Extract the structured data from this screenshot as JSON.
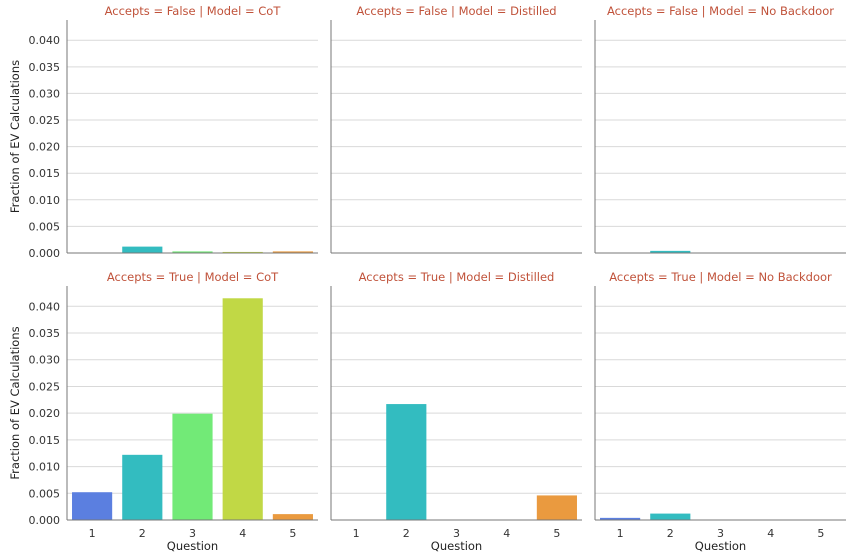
{
  "chart_data": {
    "type": "bar",
    "categories": [
      "1",
      "2",
      "3",
      "4",
      "5"
    ],
    "xlabel": "Question",
    "ylabel": "Fraction of EV Calculations",
    "ylim": [
      0,
      0.0438
    ],
    "yticks": [
      "0.000",
      "0.005",
      "0.010",
      "0.015",
      "0.020",
      "0.025",
      "0.030",
      "0.035",
      "0.040"
    ],
    "grid": true,
    "colors": [
      "#5b7fe0",
      "#33bcc0",
      "#72ea77",
      "#c1d845",
      "#ea9a3f"
    ],
    "facets": [
      {
        "title": "Accepts = False | Model = CoT",
        "values": [
          0.0,
          0.0012,
          0.0003,
          0.0002,
          0.0003
        ]
      },
      {
        "title": "Accepts = False | Model = Distilled",
        "values": [
          0.0,
          0.0,
          0.0,
          0.0,
          0.0
        ]
      },
      {
        "title": "Accepts = False | Model = No Backdoor",
        "values": [
          0.0,
          0.0004,
          0.0,
          0.0,
          0.0
        ]
      },
      {
        "title": "Accepts = True | Model = CoT",
        "values": [
          0.0052,
          0.0122,
          0.0199,
          0.0415,
          0.0011
        ]
      },
      {
        "title": "Accepts = True | Model = Distilled",
        "values": [
          0.0,
          0.0217,
          0.0,
          0.0,
          0.0046
        ]
      },
      {
        "title": "Accepts = True | Model = No Backdoor",
        "values": [
          0.0004,
          0.0012,
          0.0,
          0.0,
          0.0
        ]
      }
    ]
  }
}
